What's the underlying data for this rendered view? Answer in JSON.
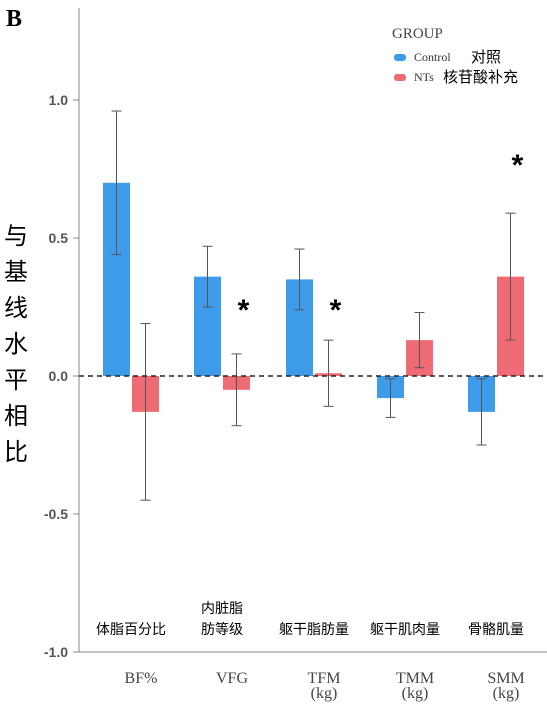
{
  "panel_label": "B",
  "ylabel": "与基线水平相比",
  "legend": {
    "title": "GROUP",
    "entries": [
      {
        "series": "Control",
        "label": "Control",
        "label_cn": "对照",
        "color": "#3d9be9"
      },
      {
        "series": "NTs",
        "label": "NTs",
        "label_cn": "核苷酸补充",
        "color": "#ee6b73"
      }
    ]
  },
  "chart_data": {
    "type": "bar",
    "categories": [
      "BF%",
      "VFG",
      "TFM\n(kg)",
      "TMM\n(kg)",
      "SMM\n(kg)"
    ],
    "category_cn": [
      "体脂百分比",
      "内脏脂\n肪等级",
      "躯干脂肪量",
      "躯干肌肉量",
      "骨骼肌量"
    ],
    "series": [
      {
        "name": "Control",
        "values": [
          0.7,
          0.36,
          0.35,
          -0.08,
          -0.13
        ],
        "err_low": [
          0.44,
          0.25,
          0.24,
          -0.15,
          -0.25
        ],
        "err_high": [
          0.96,
          0.47,
          0.46,
          -0.01,
          -0.01
        ]
      },
      {
        "name": "NTs",
        "values": [
          -0.13,
          -0.05,
          0.01,
          0.13,
          0.36
        ],
        "err_low": [
          -0.45,
          -0.18,
          -0.11,
          0.03,
          0.13
        ],
        "err_high": [
          0.19,
          0.08,
          0.13,
          0.23,
          0.59
        ]
      }
    ],
    "significance": [
      {
        "category": "VFG",
        "label": "*"
      },
      {
        "category": "TFM\n(kg)",
        "label": "*"
      },
      {
        "category": "SMM\n(kg)",
        "label": "*"
      }
    ],
    "yticks": [
      "1.0",
      "0.5",
      "0.0",
      "-0.5",
      "-1.0"
    ],
    "ylim": [
      -1.0,
      1.0
    ],
    "grid": false,
    "reference_line": 0.0,
    "legend_position": "top-right"
  }
}
